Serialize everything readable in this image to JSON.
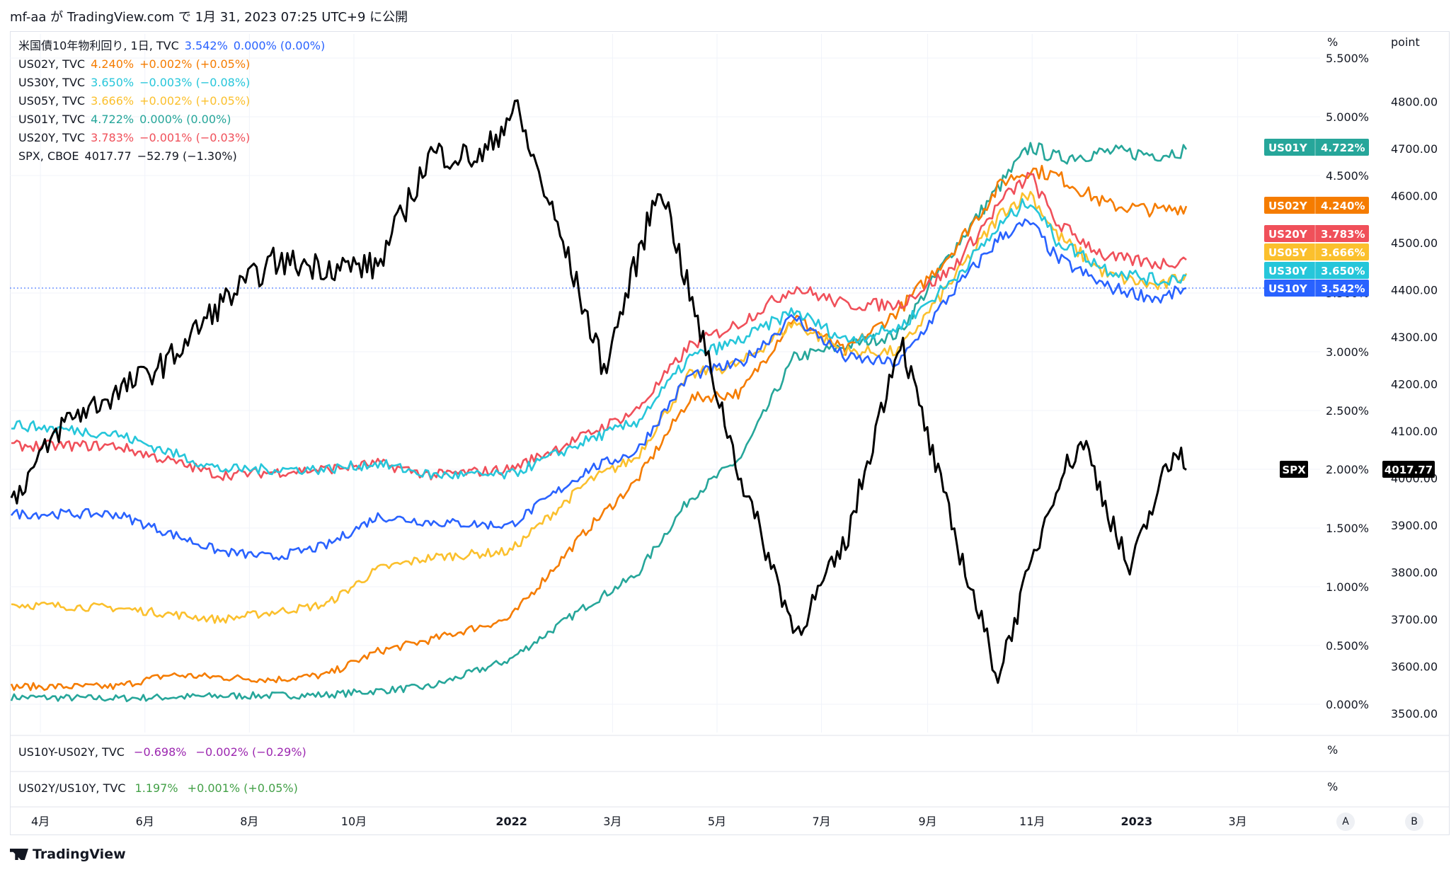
{
  "header": {
    "caption": "mf-aa が TradingView.com で 1月 31, 2023 07:25 UTC+9 に公開"
  },
  "legend": [
    {
      "symbol": "米国債10年物利回り, 1日, TVC",
      "value": "3.542%",
      "change": "0.000% (0.00%)",
      "color": "#2962ff"
    },
    {
      "symbol": "US02Y, TVC",
      "value": "4.240%",
      "change": "+0.002% (+0.05%)",
      "color": "#f57c00"
    },
    {
      "symbol": "US30Y, TVC",
      "value": "3.650%",
      "change": "−0.003% (−0.08%)",
      "color": "#26c6da"
    },
    {
      "symbol": "US05Y, TVC",
      "value": "3.666%",
      "change": "+0.002% (+0.05%)",
      "color": "#fbc02d"
    },
    {
      "symbol": "US01Y, TVC",
      "value": "4.722%",
      "change": "0.000% (0.00%)",
      "color": "#26a69a"
    },
    {
      "symbol": "US20Y, TVC",
      "value": "3.783%",
      "change": "−0.001% (−0.03%)",
      "color": "#f0505a"
    },
    {
      "symbol": "SPX, CBOE",
      "value": "4017.77",
      "change": "−52.79 (−1.30%)",
      "color": "#131722"
    }
  ],
  "panes": {
    "pane1": {
      "symbol": "US10Y-US02Y, TVC",
      "value": "−0.698%",
      "change": "−0.002% (−0.29%)",
      "color": "#9c27b0",
      "unit": "%"
    },
    "pane2": {
      "symbol": "US02Y/US10Y, TVC",
      "value": "1.197%",
      "change": "+0.001% (+0.05%)",
      "color": "#43a047",
      "unit": "%"
    }
  },
  "axes": {
    "left_unit": "%",
    "right_unit": "point",
    "pct_ticks": [
      "0.000%",
      "0.500%",
      "1.000%",
      "1.500%",
      "2.000%",
      "2.500%",
      "3.000%",
      "3.500%",
      "4.500%",
      "5.000%",
      "5.500%"
    ],
    "point_ticks": [
      "3500.00",
      "3600.00",
      "3700.00",
      "3800.00",
      "3900.00",
      "4000.00",
      "4100.00",
      "4200.00",
      "4300.00",
      "4400.00",
      "4500.00",
      "4600.00",
      "4700.00",
      "4800.00"
    ],
    "x_ticks": [
      {
        "label": "4月",
        "bold": false
      },
      {
        "label": "6月",
        "bold": false
      },
      {
        "label": "8月",
        "bold": false
      },
      {
        "label": "10月",
        "bold": false
      },
      {
        "label": "2022",
        "bold": true
      },
      {
        "label": "3月",
        "bold": false
      },
      {
        "label": "5月",
        "bold": false
      },
      {
        "label": "7月",
        "bold": false
      },
      {
        "label": "9月",
        "bold": false
      },
      {
        "label": "11月",
        "bold": false
      },
      {
        "label": "2023",
        "bold": true
      },
      {
        "label": "3月",
        "bold": false
      }
    ],
    "corner_buttons": [
      "A",
      "B"
    ]
  },
  "badges": [
    {
      "label": "US01Y",
      "value": "4.722%",
      "color": "#26a69a"
    },
    {
      "label": "US02Y",
      "value": "4.240%",
      "color": "#f57c00"
    },
    {
      "label": "US20Y",
      "value": "3.783%",
      "color": "#f0505a"
    },
    {
      "label": "US05Y",
      "value": "3.666%",
      "color": "#fbc02d"
    },
    {
      "label": "US30Y",
      "value": "3.650%",
      "color": "#26c6da"
    },
    {
      "label": "US10Y",
      "value": "3.542%",
      "color": "#2962ff"
    },
    {
      "label": "SPX",
      "value": "4017.77",
      "color": "#000000"
    }
  ],
  "chart_data": {
    "type": "line",
    "x_start": "2021-03-15",
    "x_end": "2023-01-30",
    "yaxis_left": {
      "unit": "%",
      "range": [
        -0.1,
        5.5
      ]
    },
    "yaxis_right": {
      "unit": "point",
      "range": [
        3480,
        4880
      ]
    },
    "series": [
      {
        "name": "US01Y",
        "axis": "left",
        "color": "#26a69a",
        "points": [
          [
            "2021-03-15",
            0.06
          ],
          [
            "2021-05-15",
            0.05
          ],
          [
            "2021-07-15",
            0.07
          ],
          [
            "2021-09-15",
            0.08
          ],
          [
            "2021-11-15",
            0.15
          ],
          [
            "2021-12-31",
            0.38
          ],
          [
            "2022-02-15",
            0.85
          ],
          [
            "2022-03-15",
            1.1
          ],
          [
            "2022-04-15",
            1.75
          ],
          [
            "2022-05-15",
            2.1
          ],
          [
            "2022-06-15",
            2.95
          ],
          [
            "2022-07-15",
            3.05
          ],
          [
            "2022-08-15",
            3.15
          ],
          [
            "2022-09-15",
            3.85
          ],
          [
            "2022-10-15",
            4.45
          ],
          [
            "2022-10-31",
            4.75
          ],
          [
            "2022-11-15",
            4.65
          ],
          [
            "2022-12-15",
            4.7
          ],
          [
            "2023-01-15",
            4.68
          ],
          [
            "2023-01-30",
            4.722
          ]
        ]
      },
      {
        "name": "US02Y",
        "axis": "left",
        "color": "#f57c00",
        "points": [
          [
            "2021-03-15",
            0.15
          ],
          [
            "2021-05-15",
            0.15
          ],
          [
            "2021-06-15",
            0.25
          ],
          [
            "2021-08-15",
            0.21
          ],
          [
            "2021-09-15",
            0.25
          ],
          [
            "2021-10-15",
            0.45
          ],
          [
            "2021-11-15",
            0.55
          ],
          [
            "2021-12-31",
            0.73
          ],
          [
            "2022-02-15",
            1.5
          ],
          [
            "2022-03-15",
            1.9
          ],
          [
            "2022-04-15",
            2.6
          ],
          [
            "2022-05-15",
            2.65
          ],
          [
            "2022-06-15",
            3.3
          ],
          [
            "2022-07-15",
            3.0
          ],
          [
            "2022-08-15",
            3.35
          ],
          [
            "2022-09-15",
            3.85
          ],
          [
            "2022-10-15",
            4.45
          ],
          [
            "2022-10-31",
            4.55
          ],
          [
            "2022-11-15",
            4.5
          ],
          [
            "2022-12-15",
            4.25
          ],
          [
            "2023-01-15",
            4.2
          ],
          [
            "2023-01-30",
            4.24
          ]
        ]
      },
      {
        "name": "US05Y",
        "axis": "left",
        "color": "#fbc02d",
        "points": [
          [
            "2021-03-15",
            0.85
          ],
          [
            "2021-05-15",
            0.82
          ],
          [
            "2021-07-15",
            0.72
          ],
          [
            "2021-09-15",
            0.85
          ],
          [
            "2021-10-15",
            1.15
          ],
          [
            "2021-11-15",
            1.25
          ],
          [
            "2021-12-31",
            1.3
          ],
          [
            "2022-02-15",
            1.9
          ],
          [
            "2022-03-15",
            2.1
          ],
          [
            "2022-04-15",
            2.8
          ],
          [
            "2022-05-15",
            2.9
          ],
          [
            "2022-06-15",
            3.25
          ],
          [
            "2022-07-15",
            3.0
          ],
          [
            "2022-08-15",
            3.0
          ],
          [
            "2022-09-15",
            3.6
          ],
          [
            "2022-10-15",
            4.2
          ],
          [
            "2022-10-31",
            4.35
          ],
          [
            "2022-11-15",
            4.0
          ],
          [
            "2022-12-15",
            3.65
          ],
          [
            "2023-01-15",
            3.55
          ],
          [
            "2023-01-30",
            3.666
          ]
        ]
      },
      {
        "name": "US10Y",
        "axis": "left",
        "color": "#2962ff",
        "points": [
          [
            "2021-03-15",
            1.62
          ],
          [
            "2021-05-15",
            1.62
          ],
          [
            "2021-07-15",
            1.3
          ],
          [
            "2021-08-15",
            1.25
          ],
          [
            "2021-09-15",
            1.35
          ],
          [
            "2021-10-15",
            1.6
          ],
          [
            "2021-11-15",
            1.55
          ],
          [
            "2021-12-31",
            1.52
          ],
          [
            "2022-02-15",
            2.0
          ],
          [
            "2022-03-15",
            2.15
          ],
          [
            "2022-04-15",
            2.8
          ],
          [
            "2022-05-15",
            2.9
          ],
          [
            "2022-06-15",
            3.3
          ],
          [
            "2022-07-15",
            2.95
          ],
          [
            "2022-08-15",
            2.9
          ],
          [
            "2022-09-15",
            3.5
          ],
          [
            "2022-10-15",
            4.0
          ],
          [
            "2022-10-31",
            4.1
          ],
          [
            "2022-11-15",
            3.8
          ],
          [
            "2022-12-15",
            3.55
          ],
          [
            "2023-01-15",
            3.45
          ],
          [
            "2023-01-30",
            3.542
          ]
        ]
      },
      {
        "name": "US20Y",
        "axis": "left",
        "color": "#f0505a",
        "points": [
          [
            "2021-03-15",
            2.2
          ],
          [
            "2021-05-15",
            2.2
          ],
          [
            "2021-07-15",
            1.95
          ],
          [
            "2021-09-15",
            2.0
          ],
          [
            "2021-10-15",
            2.05
          ],
          [
            "2021-11-15",
            1.95
          ],
          [
            "2021-12-31",
            2.0
          ],
          [
            "2022-02-15",
            2.3
          ],
          [
            "2022-03-15",
            2.5
          ],
          [
            "2022-04-15",
            3.05
          ],
          [
            "2022-05-15",
            3.25
          ],
          [
            "2022-06-15",
            3.55
          ],
          [
            "2022-07-15",
            3.4
          ],
          [
            "2022-08-15",
            3.4
          ],
          [
            "2022-09-15",
            3.7
          ],
          [
            "2022-10-15",
            4.3
          ],
          [
            "2022-10-31",
            4.5
          ],
          [
            "2022-11-15",
            4.1
          ],
          [
            "2022-12-15",
            3.8
          ],
          [
            "2023-01-15",
            3.75
          ],
          [
            "2023-01-30",
            3.783
          ]
        ]
      },
      {
        "name": "US30Y",
        "axis": "left",
        "color": "#26c6da",
        "points": [
          [
            "2021-03-15",
            2.38
          ],
          [
            "2021-05-15",
            2.3
          ],
          [
            "2021-07-15",
            2.0
          ],
          [
            "2021-09-15",
            2.0
          ],
          [
            "2021-10-15",
            2.05
          ],
          [
            "2021-11-15",
            1.95
          ],
          [
            "2021-12-31",
            1.95
          ],
          [
            "2022-02-15",
            2.25
          ],
          [
            "2022-03-15",
            2.4
          ],
          [
            "2022-04-15",
            2.95
          ],
          [
            "2022-05-15",
            3.1
          ],
          [
            "2022-06-15",
            3.35
          ],
          [
            "2022-07-15",
            3.1
          ],
          [
            "2022-08-15",
            3.2
          ],
          [
            "2022-09-15",
            3.6
          ],
          [
            "2022-10-15",
            4.1
          ],
          [
            "2022-10-31",
            4.3
          ],
          [
            "2022-11-15",
            3.95
          ],
          [
            "2022-12-15",
            3.7
          ],
          [
            "2023-01-15",
            3.6
          ],
          [
            "2023-01-30",
            3.65
          ]
        ]
      },
      {
        "name": "SPX",
        "axis": "right",
        "color": "#000000",
        "points": [
          [
            "2021-03-15",
            3950
          ],
          [
            "2021-04-15",
            4120
          ],
          [
            "2021-05-15",
            4180
          ],
          [
            "2021-06-15",
            4250
          ],
          [
            "2021-07-15",
            4370
          ],
          [
            "2021-08-15",
            4460
          ],
          [
            "2021-09-15",
            4450
          ],
          [
            "2021-10-15",
            4450
          ],
          [
            "2021-11-15",
            4690
          ],
          [
            "2021-12-15",
            4680
          ],
          [
            "2022-01-03",
            4790
          ],
          [
            "2022-01-31",
            4500
          ],
          [
            "2022-02-24",
            4230
          ],
          [
            "2022-03-29",
            4630
          ],
          [
            "2022-04-15",
            4390
          ],
          [
            "2022-05-15",
            4000
          ],
          [
            "2022-06-16",
            3670
          ],
          [
            "2022-07-15",
            3860
          ],
          [
            "2022-08-16",
            4300
          ],
          [
            "2022-09-15",
            3900
          ],
          [
            "2022-10-12",
            3580
          ],
          [
            "2022-11-15",
            3990
          ],
          [
            "2022-12-01",
            4080
          ],
          [
            "2022-12-28",
            3800
          ],
          [
            "2023-01-15",
            3990
          ],
          [
            "2023-01-27",
            4070
          ],
          [
            "2023-01-30",
            4017.77
          ]
        ]
      }
    ]
  }
}
